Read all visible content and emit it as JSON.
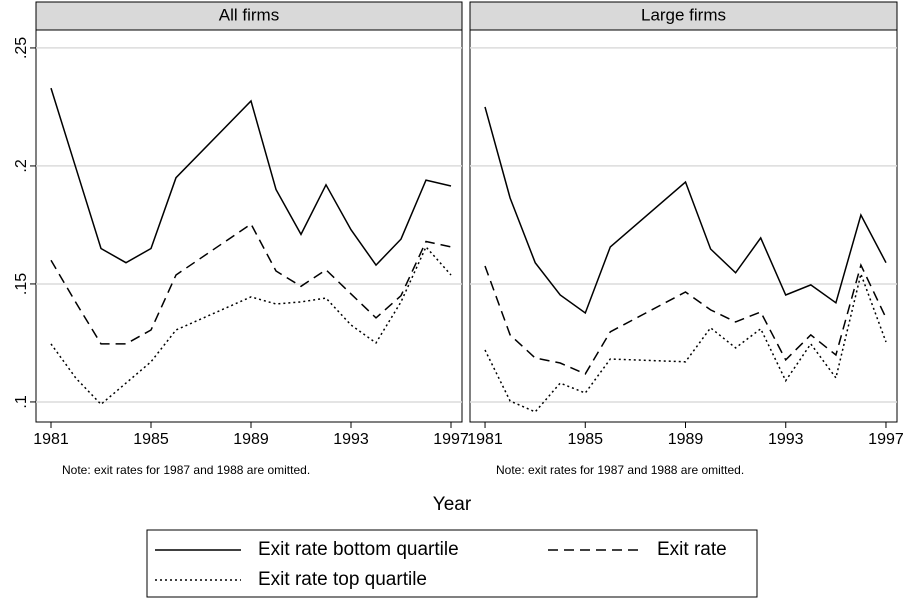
{
  "chart_data": {
    "type": "line",
    "x_label": "Year",
    "x": [
      1981,
      1982,
      1983,
      1984,
      1985,
      1986,
      1989,
      1990,
      1991,
      1992,
      1993,
      1994,
      1995,
      1996,
      1997
    ],
    "xlim": [
      1980.4,
      1997.44
    ],
    "xticks": [
      1981,
      1985,
      1989,
      1993,
      1997
    ],
    "ylim": [
      0.0915,
      0.2576
    ],
    "yticks": [
      {
        "value": 0.1,
        "label": ".1"
      },
      {
        "value": 0.15,
        "label": ".15"
      },
      {
        "value": 0.2,
        "label": ".2"
      },
      {
        "value": 0.25,
        "label": ".25"
      }
    ],
    "grid": true,
    "series": [
      {
        "name": "Exit rate bottom quartile",
        "color": "#000000",
        "dash": "none"
      },
      {
        "name": "Exit rate",
        "color": "#000000",
        "dash": "10 6"
      },
      {
        "name": "Exit rate top quartile",
        "color": "#000000",
        "dash": "2 3"
      }
    ],
    "panels": [
      {
        "title": "All firms",
        "note": "Note: exit rates for 1987 and 1988 are omitted.",
        "series": [
          {
            "values": [
              0.233,
              0.199,
              0.165,
              0.159,
              0.165,
              0.195,
              0.2275,
              0.19,
              0.171,
              0.192,
              0.173,
              0.158,
              0.169,
              0.194,
              0.1915
            ]
          },
          {
            "values": [
              0.16,
              0.142,
              0.1246,
              0.1246,
              0.1305,
              0.1538,
              0.1754,
              0.1555,
              0.149,
              0.156,
              0.1458,
              0.1356,
              0.145,
              0.168,
              0.1657
            ]
          },
          {
            "values": [
              0.1246,
              0.11,
              0.099,
              0.108,
              0.117,
              0.1305,
              0.1445,
              0.1415,
              0.1424,
              0.144,
              0.1326,
              0.125,
              0.1424,
              0.1657,
              0.1538
            ]
          }
        ]
      },
      {
        "title": "Large firms",
        "note": "Note: exit rates for 1987 and 1988 are omitted.",
        "series": [
          {
            "values": [
              0.225,
              0.1864,
              0.159,
              0.1453,
              0.1377,
              0.1657,
              0.1932,
              0.1648,
              0.1547,
              0.1695,
              0.1453,
              0.1496,
              0.142,
              0.1792,
              0.159
            ]
          },
          {
            "values": [
              0.1576,
              0.1284,
              0.1186,
              0.1165,
              0.1119,
              0.1297,
              0.1466,
              0.139,
              0.1339,
              0.1381,
              0.1178,
              0.1284,
              0.1199,
              0.158,
              0.1356
            ]
          },
          {
            "values": [
              0.122,
              0.1004,
              0.0958,
              0.108,
              0.1038,
              0.1182,
              0.117,
              0.1314,
              0.1229,
              0.131,
              0.109,
              0.1246,
              0.1102,
              0.1542,
              0.1254
            ]
          }
        ]
      }
    ]
  }
}
